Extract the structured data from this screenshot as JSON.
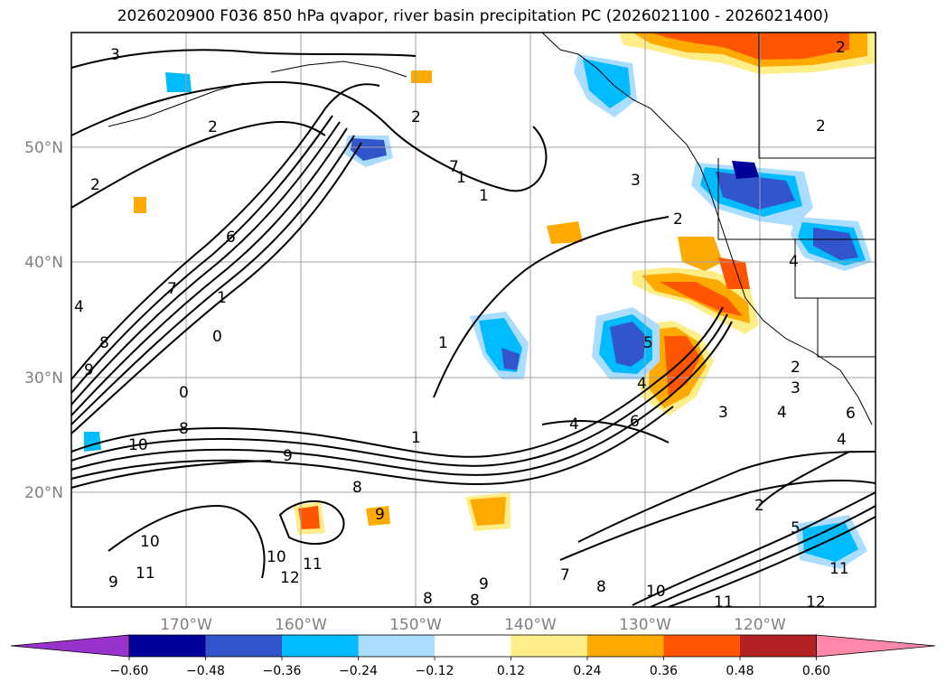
{
  "title": "2026020900 F036 850 hPa qvapor, river basin precipitation PC (2026021100 - 2026021400)",
  "lat_labels": [
    "50°N",
    "40°N",
    "30°N",
    "20°N"
  ],
  "lon_labels": [
    "170°W",
    "160°W",
    "150°W",
    "140°W",
    "130°W",
    "120°W"
  ],
  "colorbar": {
    "ticks": [
      "−0.60",
      "−0.48",
      "−0.36",
      "−0.24",
      "−0.12",
      "0.12",
      "0.24",
      "0.36",
      "0.48",
      "0.60"
    ],
    "colors": [
      "#9933cc",
      "#000099",
      "#3355cc",
      "#00bbff",
      "#aaddff",
      "#ffffff",
      "#ffee88",
      "#ffaa00",
      "#ff5500",
      "#b22222",
      "#ff88aa"
    ]
  },
  "contour_labels": [
    "3",
    "2",
    "2",
    "6",
    "7",
    "8",
    "9",
    "1",
    "0",
    "0",
    "8",
    "10",
    "9",
    "7",
    "4",
    "2",
    "1",
    "1",
    "1",
    "4",
    "3",
    "2",
    "8",
    "9",
    "10",
    "11",
    "9",
    "10",
    "12",
    "11",
    "8",
    "8",
    "9",
    "7",
    "8",
    "10",
    "11",
    "12",
    "2",
    "5",
    "11",
    "4",
    "5",
    "6",
    "3",
    "4",
    "2",
    "3",
    "4",
    "2",
    "4",
    "1",
    "2",
    "6"
  ],
  "map_colors": {
    "pos_light": "#ffee88",
    "pos_mid": "#ffaa00",
    "pos_strong": "#ff5500",
    "neg_light": "#aaddff",
    "neg_mid": "#00bbff",
    "neg_strong": "#3355cc",
    "neg_dark": "#000099"
  }
}
